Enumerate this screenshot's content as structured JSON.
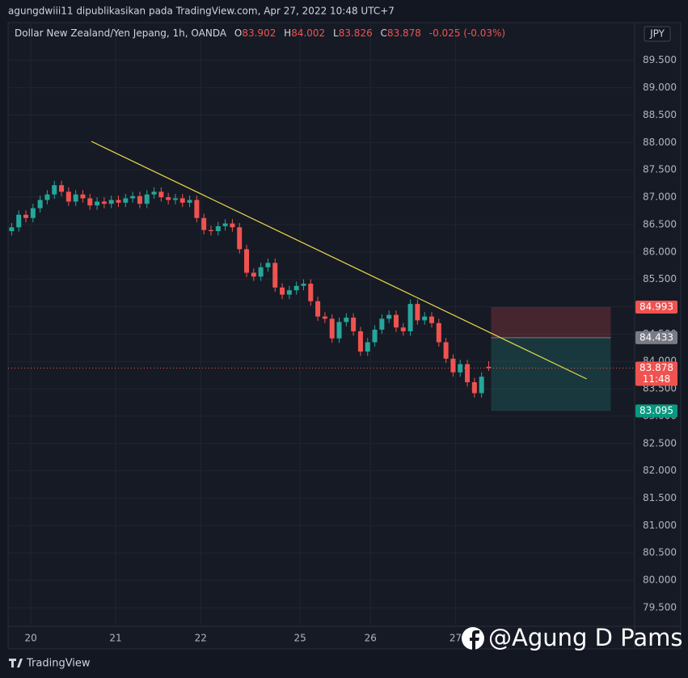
{
  "header": {
    "publisher": "agungdwiii11 dipublikasikan pada TradingView.com, Apr 27, 2022 10:48 UTC+7"
  },
  "chart_data": {
    "type": "candlestick",
    "title": "Dollar New Zealand/Yen Jepang, 1h, OANDA",
    "legend_labels": [
      "O",
      "H",
      "L",
      "C"
    ],
    "change": "-0.025",
    "change_pct": "(-0.03%)",
    "currency": "JPY",
    "x": [
      1,
      3,
      5,
      7,
      9,
      11,
      13,
      15,
      17,
      19,
      21,
      23,
      25,
      27,
      29,
      31,
      33,
      35,
      37,
      39,
      41,
      43,
      45,
      47,
      49,
      51,
      53,
      55,
      57,
      59,
      61,
      63,
      65,
      67,
      69,
      71,
      73,
      75,
      77,
      79,
      81,
      83,
      85,
      87,
      89,
      91,
      93,
      95,
      97,
      99,
      101,
      103,
      105,
      107,
      109,
      111,
      113,
      115,
      117,
      119,
      121,
      123,
      125,
      127,
      129,
      131,
      133,
      135
    ],
    "open": [
      86.38,
      86.45,
      86.68,
      86.62,
      86.8,
      86.95,
      87.05,
      87.22,
      87.1,
      86.92,
      87.05,
      86.98,
      86.85,
      86.92,
      86.88,
      86.95,
      86.9,
      86.98,
      87.02,
      86.88,
      87.05,
      87.1,
      87.0,
      86.95,
      86.98,
      86.9,
      86.95,
      86.62,
      86.4,
      86.38,
      86.47,
      86.52,
      86.45,
      86.05,
      85.62,
      85.55,
      85.72,
      85.8,
      85.35,
      85.22,
      85.3,
      85.38,
      85.42,
      85.1,
      84.82,
      84.78,
      84.42,
      84.72,
      84.8,
      84.55,
      84.18,
      84.35,
      84.58,
      84.78,
      84.85,
      84.62,
      84.55,
      85.05,
      84.75,
      84.82,
      84.7,
      84.35,
      84.05,
      83.8,
      83.95,
      83.62,
      83.42,
      83.902
    ],
    "high": [
      86.53,
      86.76,
      86.76,
      86.88,
      87.03,
      87.13,
      87.3,
      87.3,
      87.18,
      87.13,
      87.13,
      87.06,
      87.0,
      87.0,
      87.03,
      87.03,
      87.06,
      87.1,
      87.1,
      87.13,
      87.18,
      87.18,
      87.08,
      87.06,
      87.06,
      87.03,
      87.03,
      86.7,
      86.48,
      86.55,
      86.6,
      86.6,
      86.53,
      86.13,
      85.7,
      85.8,
      85.88,
      85.88,
      85.43,
      85.38,
      85.46,
      85.5,
      85.5,
      85.18,
      84.9,
      84.86,
      84.8,
      84.88,
      84.88,
      84.63,
      84.43,
      84.66,
      84.86,
      84.93,
      84.93,
      84.7,
      85.13,
      85.13,
      84.9,
      84.9,
      84.78,
      84.43,
      84.13,
      84.03,
      84.03,
      83.7,
      83.8,
      84.002
    ],
    "low": [
      86.3,
      86.37,
      86.54,
      86.54,
      86.72,
      86.87,
      86.97,
      87.02,
      86.84,
      86.84,
      86.9,
      86.77,
      86.77,
      86.8,
      86.8,
      86.82,
      86.82,
      86.9,
      86.8,
      86.8,
      86.97,
      86.92,
      86.87,
      86.87,
      86.82,
      86.82,
      86.54,
      86.32,
      86.3,
      86.3,
      86.39,
      86.37,
      85.97,
      85.54,
      85.47,
      85.47,
      85.64,
      85.27,
      85.14,
      85.14,
      85.22,
      85.3,
      85.02,
      84.74,
      84.7,
      84.34,
      84.34,
      84.64,
      84.47,
      84.1,
      84.1,
      84.27,
      84.5,
      84.7,
      84.54,
      84.47,
      84.47,
      84.67,
      84.67,
      84.62,
      84.27,
      83.97,
      83.72,
      83.72,
      83.54,
      83.34,
      83.34,
      83.826
    ],
    "close": [
      86.45,
      86.68,
      86.62,
      86.8,
      86.95,
      87.05,
      87.22,
      87.1,
      86.92,
      87.05,
      86.98,
      86.85,
      86.92,
      86.88,
      86.95,
      86.9,
      86.98,
      87.02,
      86.88,
      87.05,
      87.1,
      87.0,
      86.95,
      86.98,
      86.9,
      86.95,
      86.62,
      86.4,
      86.38,
      86.47,
      86.52,
      86.45,
      86.05,
      85.62,
      85.55,
      85.72,
      85.8,
      85.35,
      85.22,
      85.3,
      85.38,
      85.42,
      85.1,
      84.82,
      84.78,
      84.42,
      84.72,
      84.8,
      84.55,
      84.18,
      84.35,
      84.58,
      84.78,
      84.85,
      84.62,
      84.55,
      85.05,
      84.75,
      84.82,
      84.7,
      84.35,
      84.05,
      83.8,
      83.95,
      83.62,
      83.42,
      83.72,
      83.878
    ],
    "up_color": "#26a69a",
    "down_color": "#ef5350",
    "xlim": [
      0,
      176
    ],
    "xticks": [
      {
        "value": 6.4,
        "label": "20"
      },
      {
        "value": 30.2,
        "label": "21"
      },
      {
        "value": 54.1,
        "label": "22"
      },
      {
        "value": 82.0,
        "label": "25"
      },
      {
        "value": 101.8,
        "label": "26"
      },
      {
        "value": 125.7,
        "label": "27"
      }
    ],
    "ylim": [
      79.16,
      90.19
    ],
    "yticks": [
      {
        "value": 79.5,
        "label": "79.500"
      },
      {
        "value": 80,
        "label": "80.000"
      },
      {
        "value": 80.5,
        "label": "80.500"
      },
      {
        "value": 81,
        "label": "81.000"
      },
      {
        "value": 81.5,
        "label": "81.500"
      },
      {
        "value": 82,
        "label": "82.000"
      },
      {
        "value": 82.5,
        "label": "82.500"
      },
      {
        "value": 83,
        "label": "83.000"
      },
      {
        "value": 83.5,
        "label": "83.500"
      },
      {
        "value": 84,
        "label": "84.000"
      },
      {
        "value": 84.5,
        "label": "84.500"
      },
      {
        "value": 85,
        "label": "85.000"
      },
      {
        "value": 85.5,
        "label": "85.500"
      },
      {
        "value": 86,
        "label": "86.000"
      },
      {
        "value": 86.5,
        "label": "86.500"
      },
      {
        "value": 87,
        "label": "87.000"
      },
      {
        "value": 87.5,
        "label": "87.500"
      },
      {
        "value": 88,
        "label": "88.000"
      },
      {
        "value": 88.5,
        "label": "88.500"
      },
      {
        "value": 89,
        "label": "89.000"
      },
      {
        "value": 89.5,
        "label": "89.500"
      }
    ],
    "grid": true,
    "trendline": {
      "x": [
        23.4,
        162.5
      ],
      "y": [
        88.02,
        83.68
      ],
      "color": "#e8d84a"
    },
    "position": {
      "x": [
        135.7,
        169.3
      ],
      "entry": 84.433,
      "stop": 84.993,
      "target": 83.095
    },
    "last_price_time": "11:48"
  },
  "watermark": "@Agung D Pams",
  "footer": "TradingView"
}
